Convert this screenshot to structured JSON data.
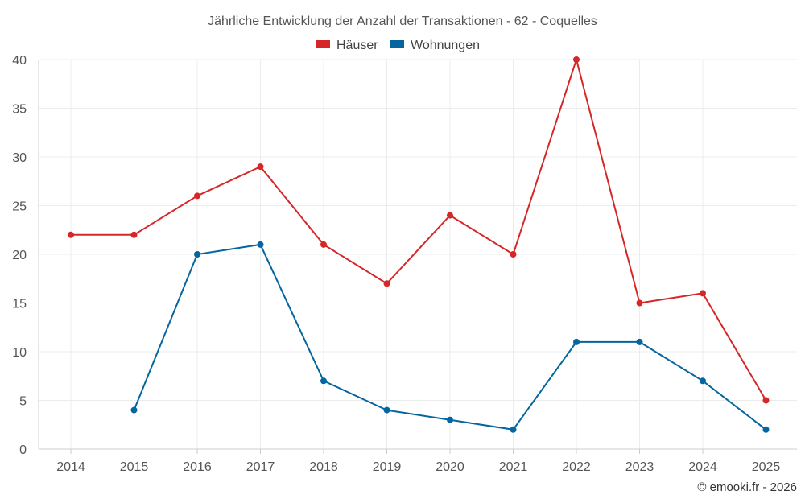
{
  "chart_data": {
    "type": "line",
    "title": "Jährliche Entwicklung der Anzahl der Transaktionen - 62 - Coquelles",
    "categories": [
      "2014",
      "2015",
      "2016",
      "2017",
      "2018",
      "2019",
      "2020",
      "2021",
      "2022",
      "2023",
      "2024",
      "2025"
    ],
    "series": [
      {
        "name": "Häuser",
        "color": "#d62728",
        "values": [
          22,
          22,
          26,
          29,
          21,
          17,
          24,
          20,
          40,
          15,
          16,
          5
        ]
      },
      {
        "name": "Wohnungen",
        "color": "#05659f",
        "values": [
          null,
          4,
          20,
          21,
          7,
          4,
          3,
          2,
          11,
          11,
          7,
          2
        ]
      }
    ],
    "ylim": [
      0,
      40
    ],
    "yticks": [
      0,
      5,
      10,
      15,
      20,
      25,
      30,
      35,
      40
    ],
    "grid": true,
    "legend_position": "top-center",
    "xlabel": "",
    "ylabel": ""
  },
  "credit": "© emooki.fr - 2026"
}
